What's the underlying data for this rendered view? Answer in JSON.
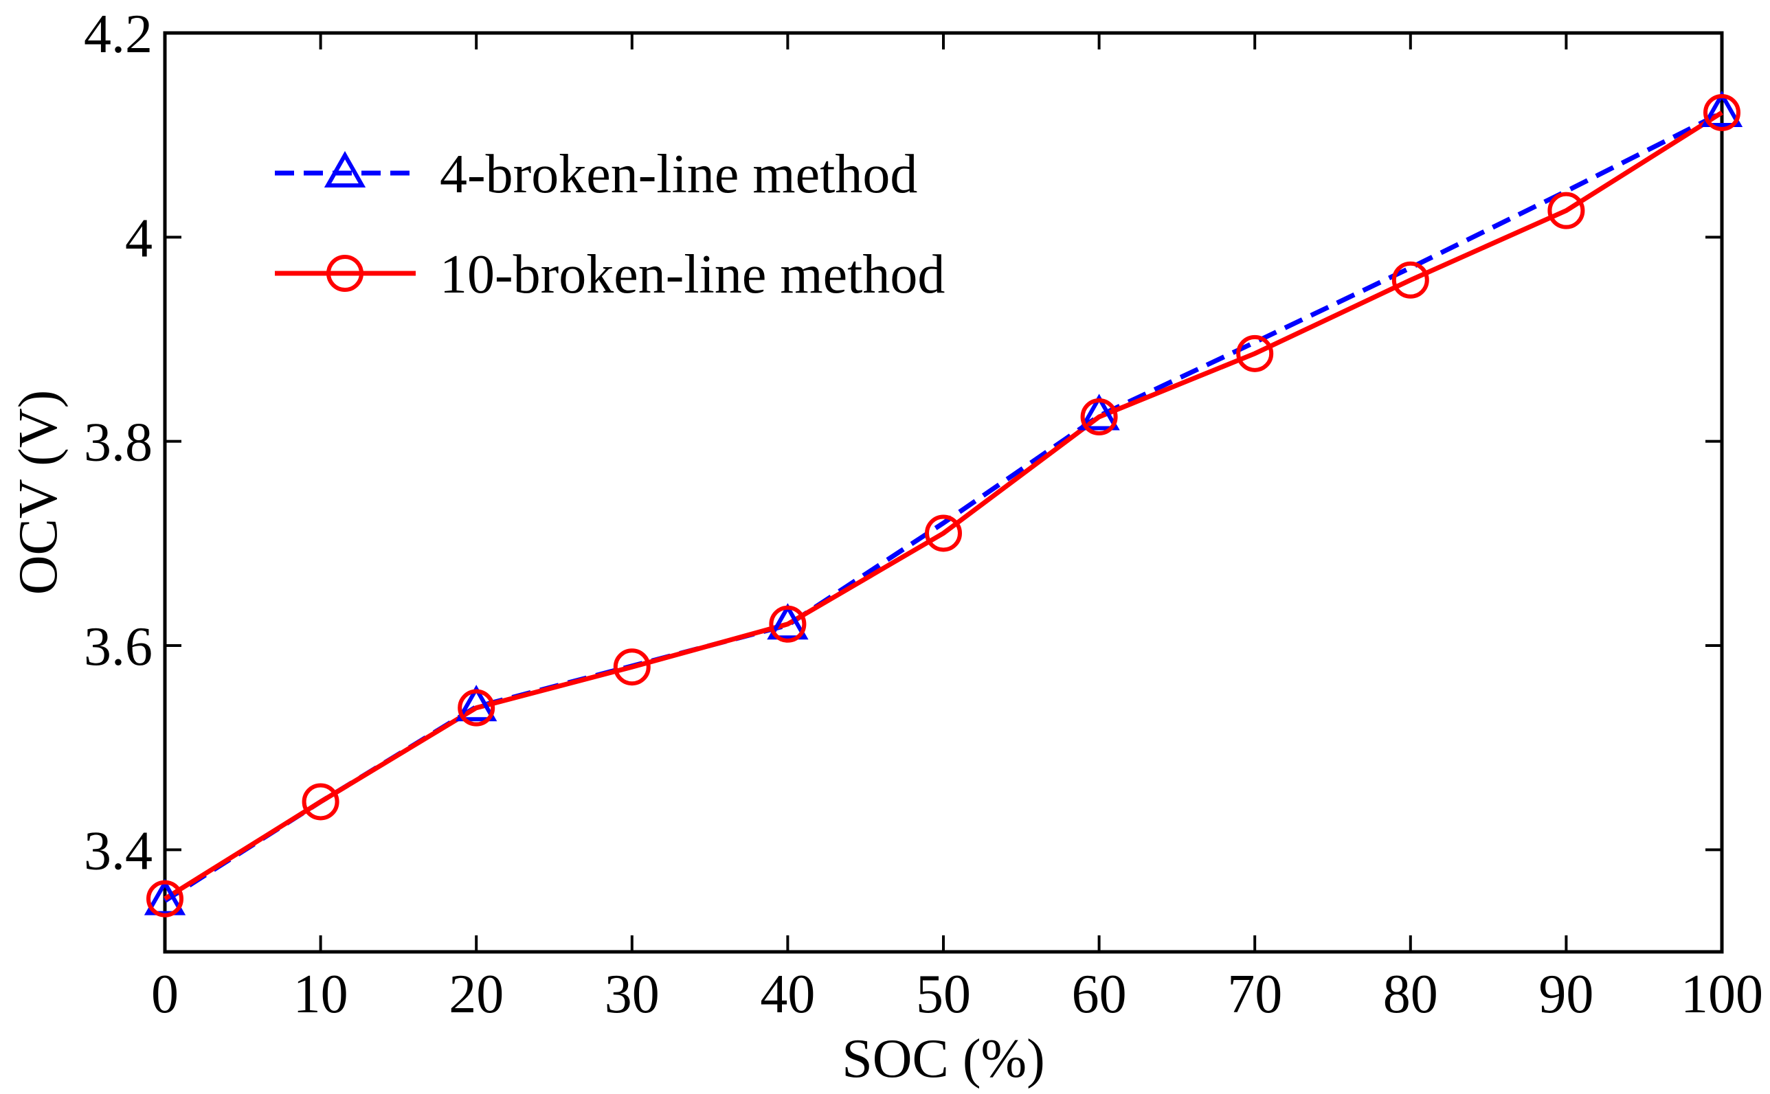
{
  "chart_data": {
    "type": "line",
    "title": "",
    "xlabel": "SOC (%)",
    "ylabel": "OCV (V)",
    "xlim": [
      0,
      100
    ],
    "ylim": [
      3.3,
      4.2
    ],
    "xticks": [
      0,
      10,
      20,
      30,
      40,
      50,
      60,
      70,
      80,
      90,
      100
    ],
    "xtick_labels": [
      "0",
      "10",
      "20",
      "30",
      "40",
      "50",
      "60",
      "70",
      "80",
      "90",
      "100"
    ],
    "yticks": [
      3.4,
      3.6,
      3.8,
      4.0,
      4.2
    ],
    "ytick_labels": [
      "3.4",
      "3.6",
      "3.8",
      "4",
      "4.2"
    ],
    "grid": false,
    "legend_position": "top-left",
    "series": [
      {
        "name": "4-broken-line method",
        "color": "#0000ff",
        "line_style": "dashed",
        "marker": "triangle",
        "x": [
          0,
          20,
          40,
          60,
          100
        ],
        "y": [
          3.35,
          3.54,
          3.62,
          3.825,
          4.122
        ],
        "line_x": [
          0,
          10,
          20,
          30,
          40,
          50,
          60,
          70,
          80,
          90,
          100
        ],
        "line_y": [
          3.35,
          3.447,
          3.54,
          3.58,
          3.62,
          3.72,
          3.825,
          3.897,
          3.97,
          4.045,
          4.122
        ]
      },
      {
        "name": "10-broken-line method",
        "color": "#ff0000",
        "line_style": "solid",
        "marker": "circle",
        "x": [
          0,
          10,
          20,
          30,
          40,
          50,
          60,
          70,
          80,
          90,
          100
        ],
        "y": [
          3.352,
          3.447,
          3.539,
          3.579,
          3.621,
          3.71,
          3.824,
          3.886,
          3.958,
          4.026,
          4.122
        ]
      }
    ]
  }
}
